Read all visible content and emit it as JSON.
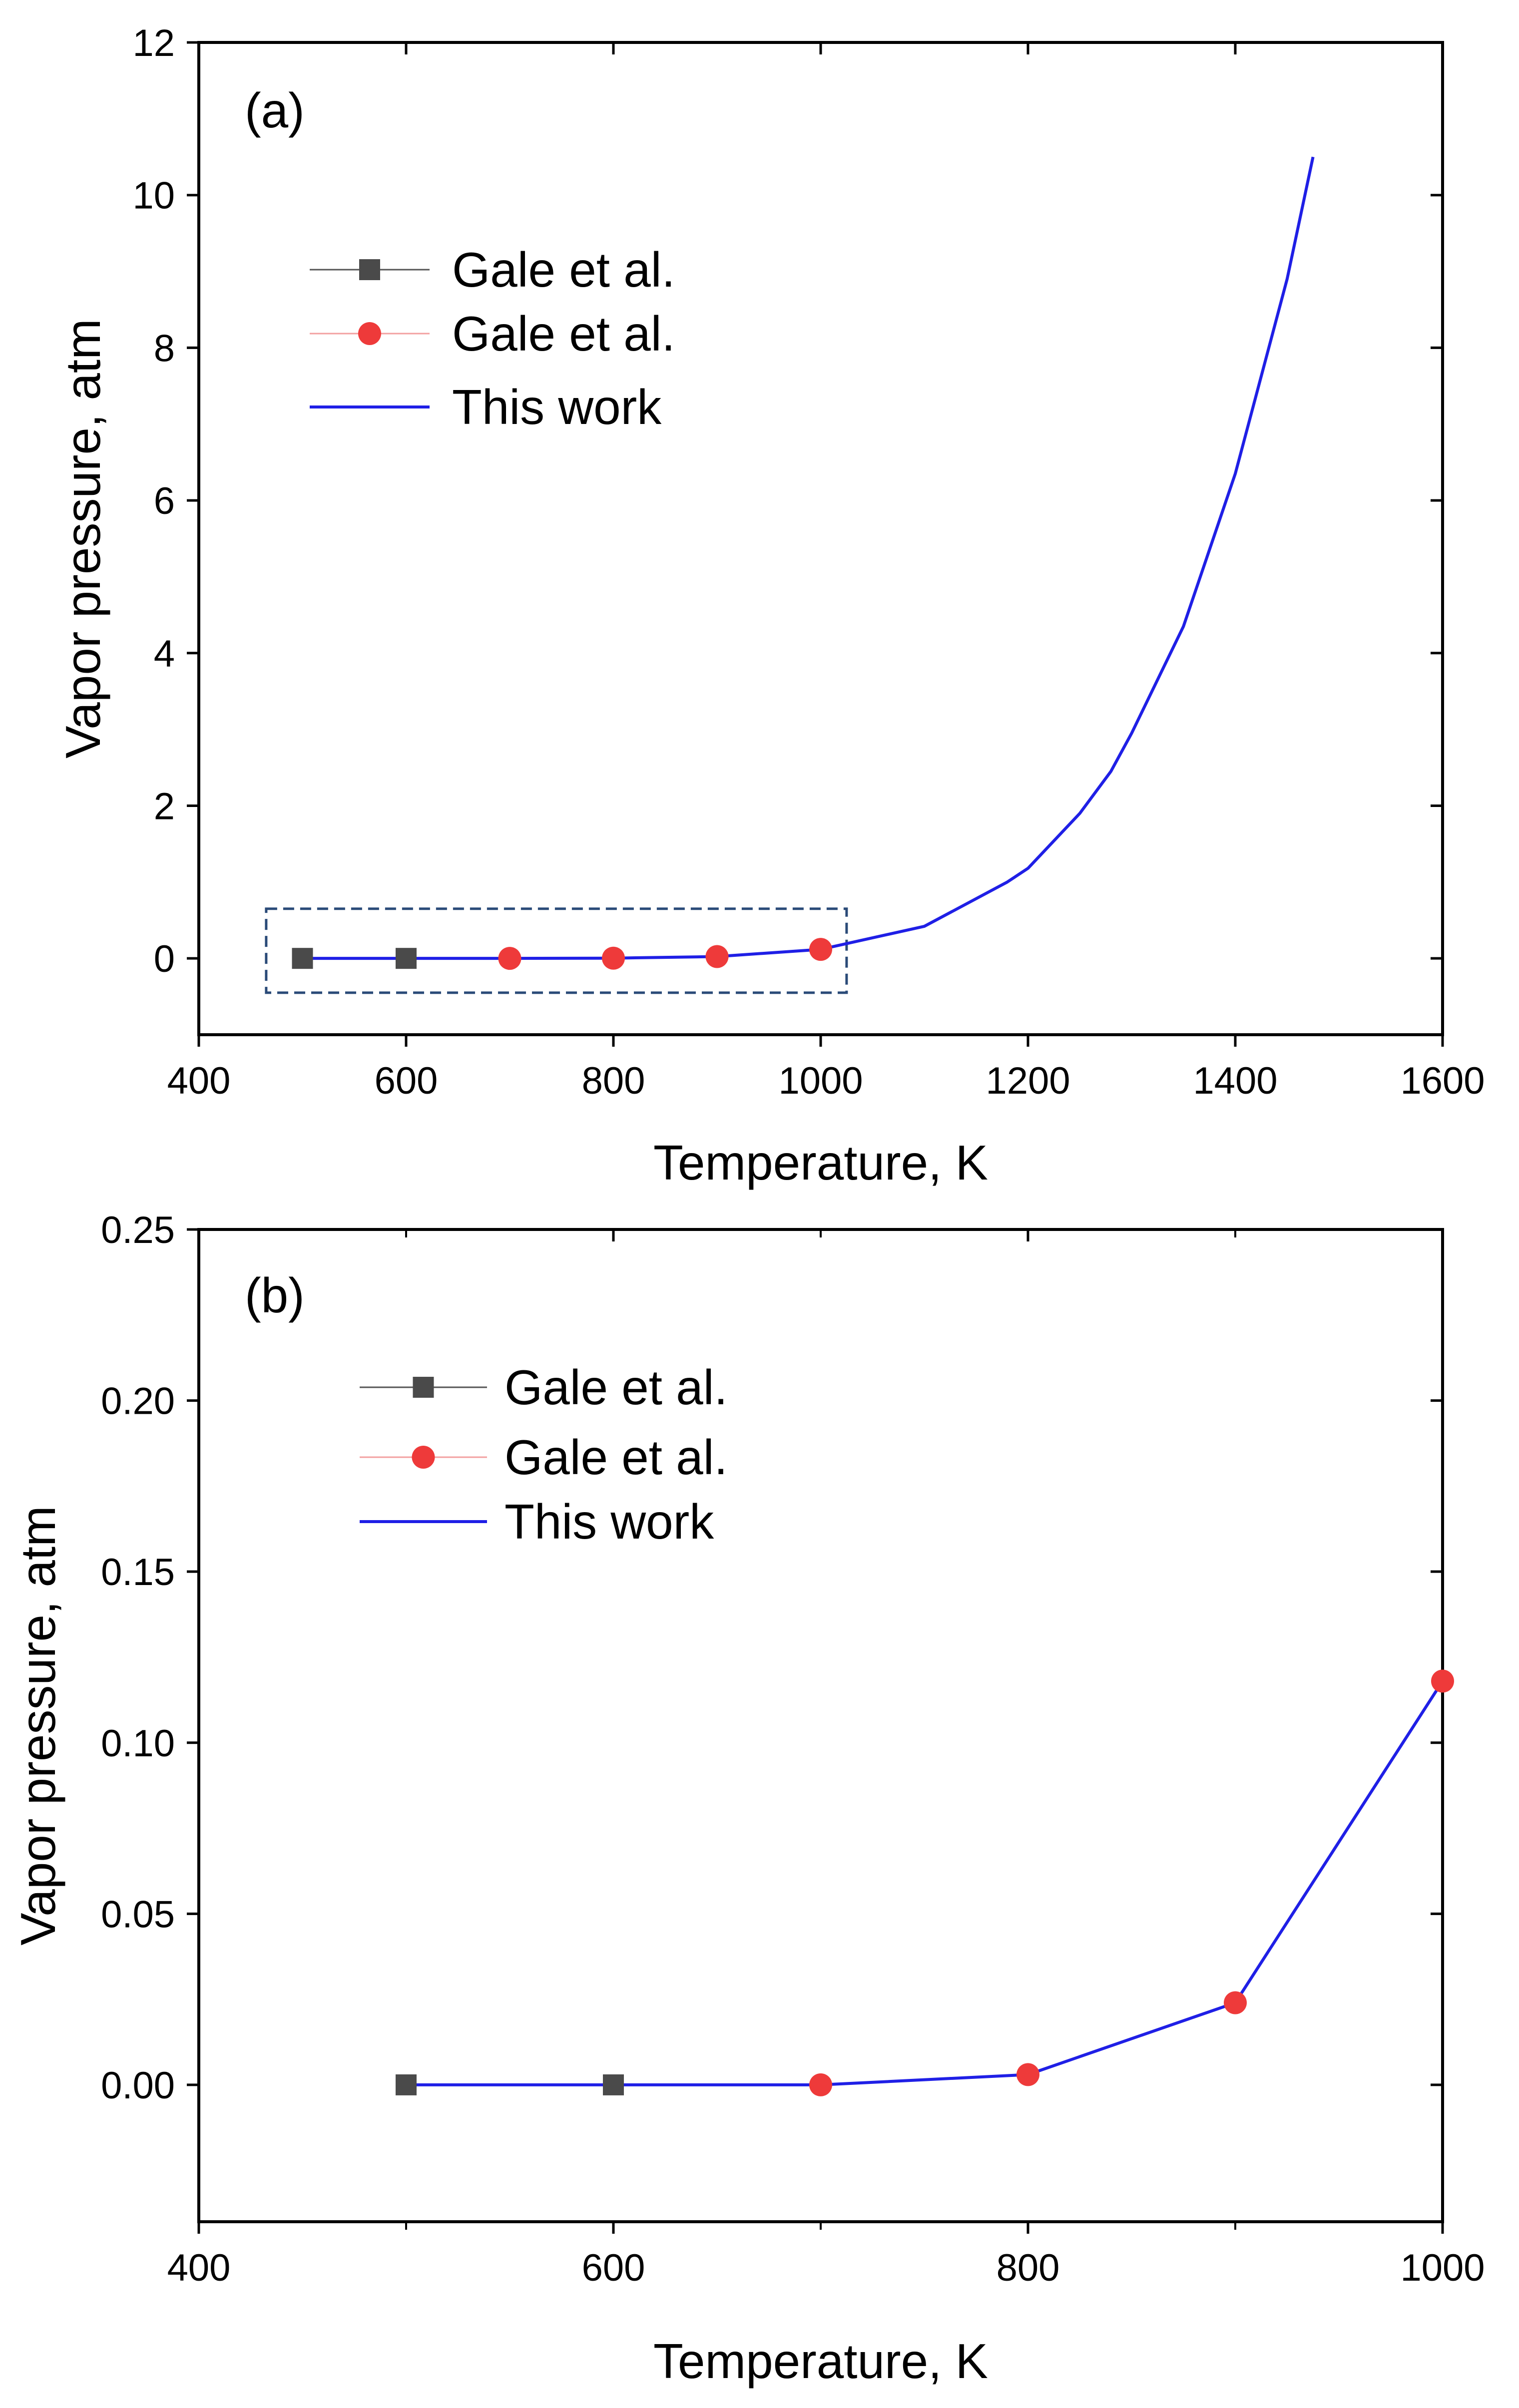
{
  "chart_data": [
    {
      "panel_label": "(a)",
      "type": "line",
      "xlabel": "Temperature, K",
      "ylabel": "Vapor pressure, atm",
      "xlim": [
        400,
        1600
      ],
      "ylim": [
        -1,
        12
      ],
      "xticks": [
        400,
        600,
        800,
        1000,
        1200,
        1400,
        1600
      ],
      "yticks": [
        0,
        2,
        4,
        6,
        8,
        10,
        12
      ],
      "xtick_labels": [
        "400",
        "600",
        "800",
        "1000",
        "1200",
        "1400",
        "1600"
      ],
      "ytick_labels": [
        "0",
        "2",
        "4",
        "6",
        "8",
        "10",
        "12"
      ],
      "legend_position": "upper-left",
      "highlight_box": {
        "x_range": [
          465,
          1025
        ],
        "y_range": [
          -0.45,
          0.65
        ],
        "style": "dashed"
      },
      "series": [
        {
          "name": "Gale et al.",
          "kind": "marker",
          "marker": "square",
          "color": "#4a4a4a",
          "x": [
            500,
            600
          ],
          "y": [
            0.0,
            0.0
          ]
        },
        {
          "name": "Gale et al.",
          "kind": "marker",
          "marker": "circle",
          "color": "#ee3a3a",
          "x": [
            700,
            800,
            900,
            1000
          ],
          "y": [
            0.0,
            0.003,
            0.024,
            0.118
          ]
        },
        {
          "name": "This work",
          "kind": "line",
          "color": "#1f1fe6",
          "x": [
            500,
            600,
            700,
            800,
            900,
            1000,
            1100,
            1180,
            1200,
            1250,
            1280,
            1300,
            1350,
            1400,
            1450,
            1475
          ],
          "y": [
            0.0,
            0.0,
            0.0,
            0.003,
            0.024,
            0.118,
            0.42,
            1.0,
            1.18,
            1.9,
            2.45,
            2.95,
            4.35,
            6.35,
            8.9,
            10.5
          ]
        }
      ]
    },
    {
      "panel_label": "(b)",
      "type": "line",
      "xlabel": "Temperature, K",
      "ylabel": "Vapor pressure, atm",
      "xlim": [
        400,
        1000
      ],
      "ylim": [
        -0.04,
        0.25
      ],
      "xticks": [
        400,
        600,
        800,
        1000
      ],
      "minor_xticks": [
        500,
        700,
        900
      ],
      "yticks": [
        0.0,
        0.05,
        0.1,
        0.15,
        0.2,
        0.25
      ],
      "xtick_labels": [
        "400",
        "600",
        "800",
        "1000"
      ],
      "ytick_labels": [
        "0.00",
        "0.05",
        "0.10",
        "0.15",
        "0.20",
        "0.25"
      ],
      "legend_position": "upper-left",
      "series": [
        {
          "name": "Gale et al.",
          "kind": "marker",
          "marker": "square",
          "color": "#4a4a4a",
          "x": [
            500,
            600
          ],
          "y": [
            0.0,
            0.0
          ]
        },
        {
          "name": "Gale et al.",
          "kind": "marker",
          "marker": "circle",
          "color": "#ee3a3a",
          "x": [
            700,
            800,
            900,
            1000
          ],
          "y": [
            0.0,
            0.003,
            0.024,
            0.118
          ]
        },
        {
          "name": "This work",
          "kind": "line",
          "color": "#1f1fe6",
          "x": [
            500,
            600,
            700,
            800,
            900,
            1000
          ],
          "y": [
            0.0,
            0.0,
            0.0,
            0.003,
            0.024,
            0.118
          ]
        }
      ]
    }
  ]
}
